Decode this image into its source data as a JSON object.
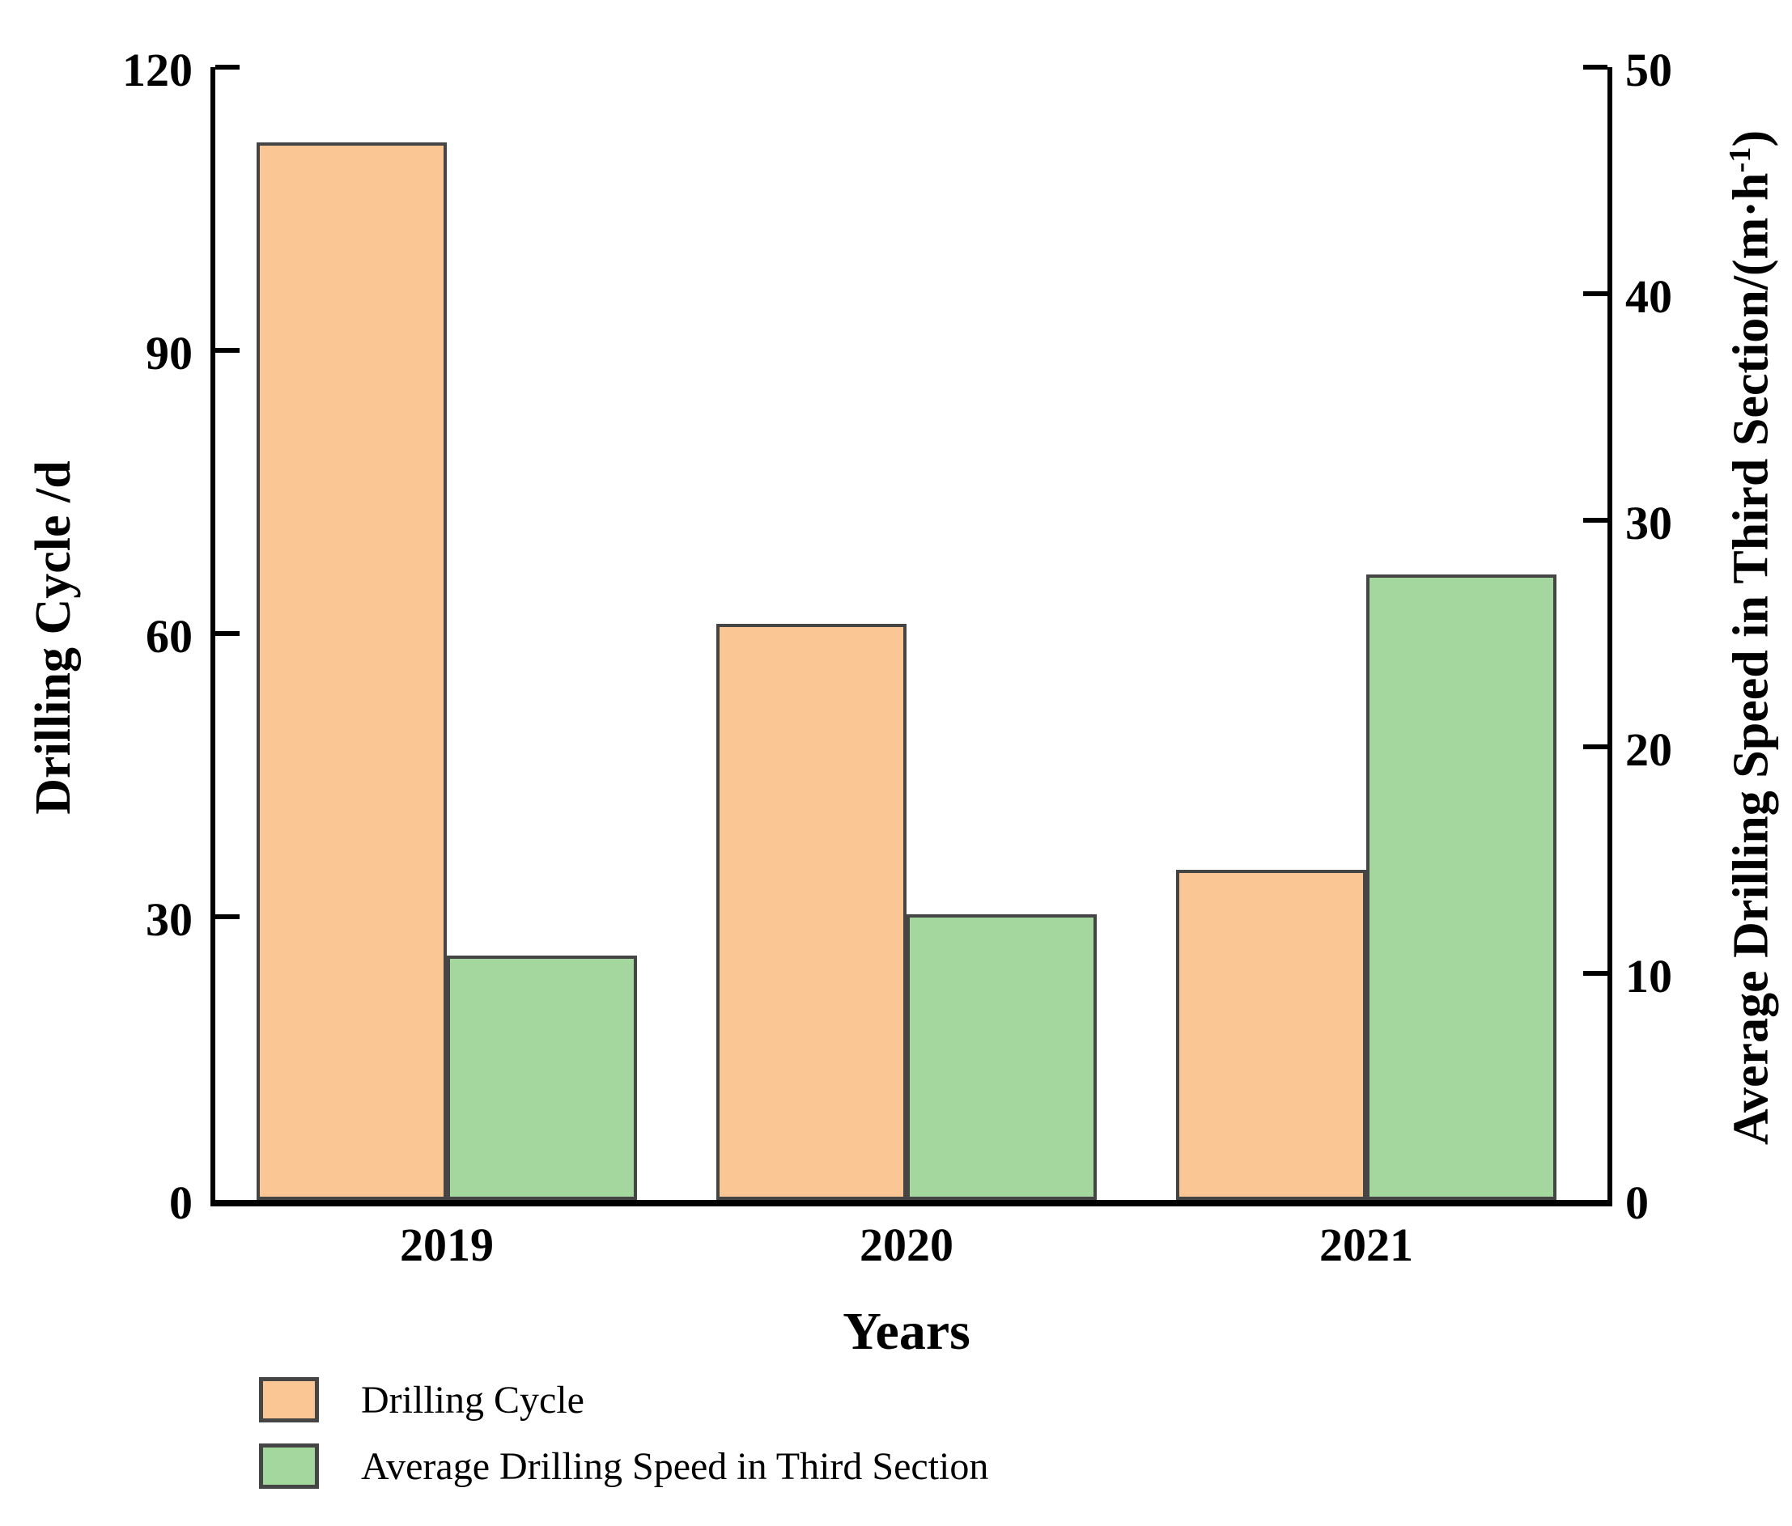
{
  "chart_data": {
    "type": "bar",
    "categories": [
      "2019",
      "2020",
      "2021"
    ],
    "series": [
      {
        "name": "Drilling Cycle",
        "axis": "left",
        "color": "#FAC693",
        "values": [
          112,
          61,
          35
        ]
      },
      {
        "name": "Average Drilling Speed in Third Section",
        "axis": "right",
        "color": "#A3D79D",
        "values": [
          10.8,
          12.6,
          27.6
        ]
      }
    ],
    "title": "",
    "xlabel": "Years",
    "ylabel_left": "Drilling Cycle /d",
    "ylabel_right": "Average Drilling Speed in Third Section/(m·h⁻¹)",
    "ylim_left": [
      0,
      120
    ],
    "yticks_left": [
      0,
      30,
      60,
      90,
      120
    ],
    "ylim_right": [
      0,
      50
    ],
    "yticks_right": [
      0,
      10,
      20,
      30,
      40,
      50
    ],
    "grid": false,
    "legend_position": "bottom-left",
    "bar_edge_color": "#454545",
    "axis_color": "#000000"
  },
  "left_axis": {
    "title": "Drilling Cycle /d"
  },
  "right_axis": {
    "title": "Average Drilling Speed in Third Section/(m·h⁻¹)",
    "label_pre": "Average Drilling Speed in Third Section/(m·h",
    "label_sup": "-1",
    "label_post": ")"
  },
  "x_axis": {
    "title": "Years"
  },
  "legend": {
    "items": [
      {
        "label": "Drilling Cycle",
        "color": "#FAC693"
      },
      {
        "label": "Average Drilling Speed in Third Section",
        "color": "#A3D79D"
      }
    ]
  }
}
